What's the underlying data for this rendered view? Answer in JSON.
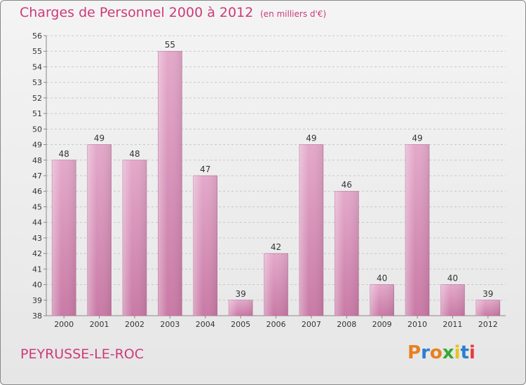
{
  "title": "Charges de Personnel 2000 à 2012",
  "subtitle": "(en milliers d'€)",
  "location": "PEYRUSSE-LE-ROC",
  "logo": {
    "text": "Proxiti",
    "colors": [
      "#e8801e",
      "#2a7fd0",
      "#e8801e",
      "#3aa835",
      "#e8c21e",
      "#2a7fd0",
      "#e83a3a"
    ]
  },
  "colors": {
    "bar": "#c97aa6",
    "bar_light": "#e4a9ca",
    "accent": "#cc3a7a"
  },
  "chart_data": {
    "type": "bar",
    "categories": [
      "2000",
      "2001",
      "2002",
      "2003",
      "2004",
      "2005",
      "2006",
      "2007",
      "2008",
      "2009",
      "2010",
      "2011",
      "2012"
    ],
    "values": [
      48,
      49,
      48,
      55,
      47,
      39,
      42,
      49,
      46,
      40,
      49,
      40,
      39
    ],
    "ylim": [
      38,
      56
    ],
    "yticks": [
      38,
      39,
      40,
      41,
      42,
      43,
      44,
      45,
      46,
      47,
      48,
      49,
      50,
      51,
      52,
      53,
      54,
      55,
      56
    ],
    "grid": true,
    "title": "Charges de Personnel 2000 à 2012",
    "xlabel": "",
    "ylabel": ""
  }
}
